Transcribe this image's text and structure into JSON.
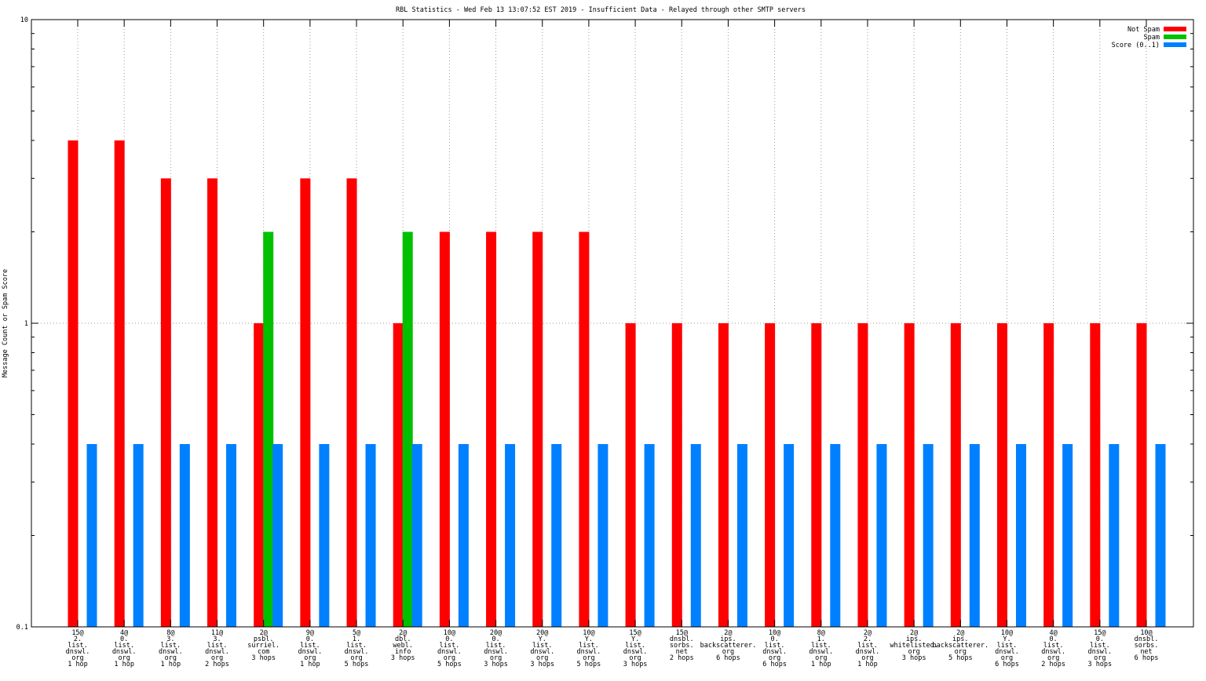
{
  "chart_data": {
    "type": "bar",
    "title": "RBL Statistics - Wed Feb 13 13:07:52 EST 2019 - Insufficient Data - Relayed through other SMTP servers",
    "xlabel": "",
    "ylabel": "Message Count or Spam Score",
    "yscale": "log",
    "ylim": [
      0.1,
      10
    ],
    "yticks": [
      "10",
      "1",
      "0.1"
    ],
    "ytick_values": [
      10,
      1,
      0.1
    ],
    "grid": true,
    "legend_position": "top-right",
    "categories": [
      [
        "15@",
        "2.",
        "list.",
        "dnswl.",
        "org",
        "1 hop"
      ],
      [
        "4@",
        "0.",
        "list.",
        "dnswl.",
        "org",
        "1 hop"
      ],
      [
        "8@",
        "3.",
        "list.",
        "dnswl.",
        "org",
        "1 hop"
      ],
      [
        "11@",
        "3.",
        "list.",
        "dnswl.",
        "org",
        "2 hops"
      ],
      [
        "2@",
        "psbl.",
        "surriel.",
        "com",
        "3 hops"
      ],
      [
        "9@",
        "0.",
        "list.",
        "dnswl.",
        "org",
        "1 hop"
      ],
      [
        "5@",
        "1.",
        "list.",
        "dnswl.",
        "org",
        "5 hops"
      ],
      [
        "2@",
        "dbl.",
        "webl.",
        "info",
        "3 hops"
      ],
      [
        "10@",
        "0.",
        "list.",
        "dnswl.",
        "org",
        "5 hops"
      ],
      [
        "20@",
        "0.",
        "list.",
        "dnswl.",
        "org",
        "3 hops"
      ],
      [
        "20@",
        "Y.",
        "list.",
        "dnswl.",
        "org",
        "3 hops"
      ],
      [
        "10@",
        "Y.",
        "list.",
        "dnswl.",
        "org",
        "5 hops"
      ],
      [
        "15@",
        "Y.",
        "list.",
        "dnswl.",
        "org",
        "3 hops"
      ],
      [
        "15@",
        "dnsbl.",
        "sorbs.",
        "net",
        "2 hops"
      ],
      [
        "2@",
        "ips.",
        "backscatterer.",
        "org",
        "6 hops"
      ],
      [
        "10@",
        "0.",
        "list.",
        "dnswl.",
        "org",
        "6 hops"
      ],
      [
        "8@",
        "1.",
        "list.",
        "dnswl.",
        "org",
        "1 hop"
      ],
      [
        "2@",
        "2.",
        "list.",
        "dnswl.",
        "org",
        "1 hop"
      ],
      [
        "2@",
        "ips.",
        "whitelisted.",
        "org",
        "3 hops"
      ],
      [
        "2@",
        "ips.",
        "backscatterer.",
        "org",
        "5 hops"
      ],
      [
        "10@",
        "Y.",
        "list.",
        "dnswl.",
        "org",
        "6 hops"
      ],
      [
        "4@",
        "0.",
        "list.",
        "dnswl.",
        "org",
        "2 hops"
      ],
      [
        "15@",
        "0.",
        "list.",
        "dnswl.",
        "org",
        "3 hops"
      ],
      [
        "10@",
        "dnsbl.",
        "sorbs.",
        "net",
        "6 hops"
      ]
    ],
    "series": [
      {
        "name": "Not Spam",
        "color": "#ff0000",
        "values": [
          4,
          4,
          3,
          3,
          1,
          3,
          3,
          1,
          2,
          2,
          2,
          2,
          1,
          1,
          1,
          1,
          1,
          1,
          1,
          1,
          1,
          1,
          1,
          1
        ]
      },
      {
        "name": "Spam",
        "color": "#00c000",
        "values": [
          null,
          null,
          null,
          null,
          2,
          null,
          null,
          2,
          null,
          null,
          null,
          null,
          null,
          null,
          null,
          null,
          null,
          null,
          null,
          null,
          null,
          null,
          null,
          null
        ]
      },
      {
        "name": "Score (0..1)",
        "color": "#0080ff",
        "values": [
          0.4,
          0.4,
          0.4,
          0.4,
          0.4,
          0.4,
          0.4,
          0.4,
          0.4,
          0.4,
          0.4,
          0.4,
          0.4,
          0.4,
          0.4,
          0.4,
          0.4,
          0.4,
          0.4,
          0.4,
          0.4,
          0.4,
          0.4,
          0.4
        ]
      }
    ]
  }
}
